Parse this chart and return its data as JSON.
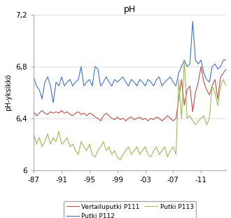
{
  "title": "pH",
  "ylabel": "pH-yksikkö",
  "ylim": [
    6.0,
    7.2
  ],
  "yticks": [
    6.0,
    6.4,
    6.8,
    7.2
  ],
  "ytick_labels": [
    "6",
    "6,4",
    "6,8",
    "7,2"
  ],
  "xtick_labels": [
    "-87",
    "-91",
    "-95",
    "-99",
    "-03",
    "-07",
    "-11"
  ],
  "series": {
    "P111": {
      "color": "#C0504D",
      "label": "Vertailuputki P111",
      "y": [
        6.45,
        6.42,
        6.44,
        6.46,
        6.44,
        6.43,
        6.45,
        6.44,
        6.45,
        6.44,
        6.46,
        6.44,
        6.45,
        6.43,
        6.42,
        6.44,
        6.45,
        6.43,
        6.44,
        6.42,
        6.44,
        6.43,
        6.41,
        6.4,
        6.38,
        6.42,
        6.44,
        6.42,
        6.4,
        6.39,
        6.41,
        6.39,
        6.4,
        6.38,
        6.4,
        6.41,
        6.39,
        6.4,
        6.41,
        6.39,
        6.4,
        6.38,
        6.4,
        6.39,
        6.41,
        6.4,
        6.38,
        6.4,
        6.42,
        6.4,
        6.38,
        6.4,
        6.55,
        6.7,
        6.5,
        6.62,
        6.65,
        6.45,
        6.6,
        6.68,
        6.8,
        6.68,
        6.62,
        6.58,
        6.65,
        6.7,
        6.55,
        6.72,
        6.75,
        6.78
      ]
    },
    "P112": {
      "color": "#4472C4",
      "label": "Putki P112",
      "y": [
        6.72,
        6.65,
        6.62,
        6.55,
        6.68,
        6.72,
        6.65,
        6.52,
        6.68,
        6.65,
        6.72,
        6.65,
        6.68,
        6.7,
        6.65,
        6.68,
        6.7,
        6.8,
        6.65,
        6.68,
        6.7,
        6.65,
        6.8,
        6.78,
        6.65,
        6.68,
        6.72,
        6.68,
        6.65,
        6.7,
        6.68,
        6.7,
        6.72,
        6.68,
        6.65,
        6.7,
        6.68,
        6.65,
        6.7,
        6.68,
        6.65,
        6.7,
        6.68,
        6.65,
        6.7,
        6.72,
        6.65,
        6.68,
        6.7,
        6.72,
        6.68,
        6.65,
        6.75,
        6.8,
        6.85,
        6.8,
        6.82,
        7.15,
        6.85,
        6.82,
        6.85,
        6.75,
        6.7,
        6.68,
        6.8,
        6.82,
        6.78,
        6.8,
        6.85,
        6.85
      ]
    },
    "P113": {
      "color": "#9BBB59",
      "label": "Putki P113",
      "y": [
        6.28,
        6.2,
        6.25,
        6.18,
        6.22,
        6.28,
        6.2,
        6.25,
        6.22,
        6.3,
        6.2,
        6.22,
        6.25,
        6.18,
        6.2,
        6.15,
        6.12,
        6.22,
        6.18,
        6.15,
        6.2,
        6.12,
        6.1,
        6.15,
        6.18,
        6.22,
        6.15,
        6.18,
        6.12,
        6.15,
        6.1,
        6.08,
        6.12,
        6.15,
        6.18,
        6.12,
        6.15,
        6.18,
        6.12,
        6.15,
        6.18,
        6.12,
        6.1,
        6.15,
        6.18,
        6.12,
        6.15,
        6.18,
        6.1,
        6.15,
        6.18,
        6.12,
        6.7,
        6.4,
        6.85,
        6.4,
        6.42,
        6.38,
        6.35,
        6.38,
        6.4,
        6.42,
        6.35,
        6.4,
        6.65,
        6.6,
        6.5,
        6.65,
        6.7,
        6.65
      ]
    }
  },
  "bg_color": "#FFFFFF",
  "grid_color": "#D3D3D3",
  "n_total": 70,
  "xtick_indices": [
    0,
    10,
    20,
    30,
    40,
    50,
    60
  ]
}
